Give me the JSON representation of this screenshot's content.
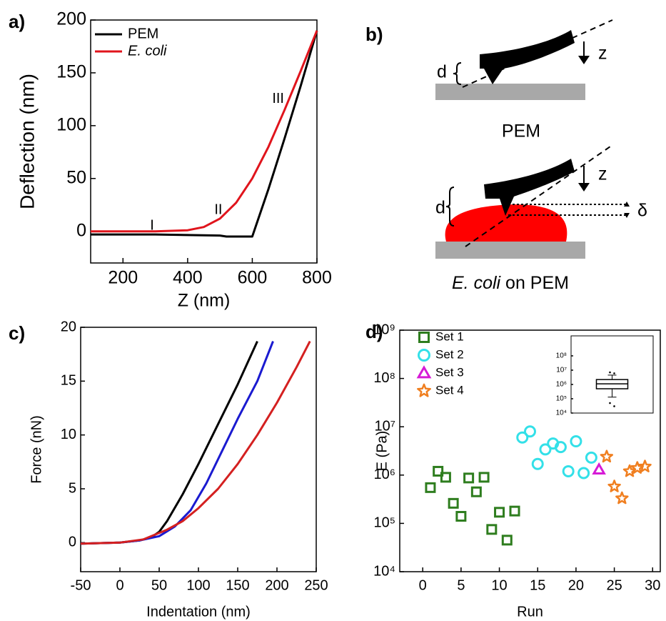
{
  "chart_data": [
    {
      "type": "line",
      "label": "a)",
      "xlabel": "Z (nm)",
      "ylabel": "Deflection (nm)",
      "xlim": [
        100,
        800
      ],
      "xticks": [
        200,
        400,
        600,
        800
      ],
      "ylim": [
        -30,
        200
      ],
      "yticks": [
        0,
        50,
        100,
        150,
        200
      ],
      "legend": "upper left",
      "series": [
        {
          "name": "PEM",
          "color": "#000000",
          "x": [
            100,
            300,
            500,
            520,
            560,
            600,
            650,
            700,
            750,
            800
          ],
          "values": [
            -3,
            -3,
            -4,
            -5,
            -5,
            -5,
            40,
            88,
            138,
            190
          ]
        },
        {
          "name": "E. coli",
          "color": "#e0141c",
          "x": [
            100,
            300,
            400,
            450,
            500,
            550,
            600,
            650,
            700,
            750,
            800
          ],
          "values": [
            0,
            0,
            1,
            4,
            12,
            27,
            50,
            80,
            115,
            152,
            190
          ]
        }
      ],
      "annotations": [
        {
          "text": "I",
          "x": 290,
          "y": 5
        },
        {
          "text": "II",
          "x": 495,
          "y": 20
        },
        {
          "text": "III",
          "x": 680,
          "y": 125
        }
      ]
    },
    {
      "type": "line",
      "label": "c)",
      "xlabel": "Indentation (nm)",
      "ylabel": "Force (nN)",
      "xlim": [
        -50,
        250
      ],
      "xticks": [
        -50,
        0,
        50,
        100,
        150,
        200,
        250
      ],
      "ylim": [
        -2.7,
        20
      ],
      "yticks": [
        0,
        5,
        10,
        15,
        20
      ],
      "series": [
        {
          "color": "#000000",
          "x": [
            -50,
            0,
            25,
            40,
            50,
            60,
            80,
            100,
            125,
            150,
            175
          ],
          "values": [
            -0.1,
            0,
            0.2,
            0.5,
            1,
            2,
            4.5,
            7.3,
            11,
            14.7,
            18.7
          ]
        },
        {
          "color": "#1a1ad0",
          "x": [
            -50,
            0,
            25,
            50,
            70,
            90,
            110,
            130,
            150,
            175,
            195
          ],
          "values": [
            -0.1,
            0,
            0.2,
            0.6,
            1.5,
            3,
            5.5,
            8.5,
            11.5,
            15,
            18.7
          ]
        },
        {
          "color": "#d42020",
          "x": [
            -50,
            0,
            30,
            60,
            80,
            100,
            125,
            150,
            175,
            200,
            225,
            242
          ],
          "values": [
            -0.1,
            0,
            0.3,
            1.2,
            2,
            3.2,
            5,
            7.3,
            10,
            13,
            16.3,
            18.7
          ]
        }
      ]
    },
    {
      "type": "scatter",
      "label": "d)",
      "xlabel": "Run",
      "ylabel": "E (Pa)",
      "log_y": true,
      "xlim": [
        -3,
        31
      ],
      "xticks": [
        0,
        5,
        10,
        15,
        20,
        25,
        30
      ],
      "ylim": [
        10000,
        1000000000
      ],
      "yticks": [
        {
          "value": 10000,
          "label": "10⁴"
        },
        {
          "value": 100000,
          "label": "10⁵"
        },
        {
          "value": 1000000,
          "label": "10⁶"
        },
        {
          "value": 10000000,
          "label": "10⁷"
        },
        {
          "value": 100000000,
          "label": "10⁸"
        },
        {
          "value": 1000000000,
          "label": "10⁹"
        }
      ],
      "legend": "upper left",
      "series": [
        {
          "name": "Set 1",
          "color": "#2e7d1e",
          "marker": "square",
          "x": [
            1,
            2,
            3,
            4,
            5,
            6,
            7,
            8,
            9,
            10,
            11,
            12
          ],
          "values": [
            550000,
            1200000,
            900000,
            260000,
            140000,
            870000,
            450000,
            900000,
            75000,
            170000,
            45000,
            180000
          ]
        },
        {
          "name": "Set 2",
          "color": "#33e0e8",
          "marker": "circle",
          "x": [
            13,
            14,
            15,
            16,
            17,
            18,
            19,
            20,
            21,
            22
          ],
          "values": [
            6000000,
            8000000,
            1700000,
            3400000,
            4500000,
            3800000,
            1200000,
            5000000,
            1100000,
            2300000
          ]
        },
        {
          "name": "Set 3",
          "color": "#d61ad6",
          "marker": "triangle",
          "x": [
            23
          ],
          "values": [
            1300000
          ]
        },
        {
          "name": "Set 4",
          "color": "#f07f20",
          "marker": "star",
          "x": [
            24,
            25,
            26,
            27,
            28,
            29
          ],
          "values": [
            2400000,
            580000,
            330000,
            1200000,
            1400000,
            1500000
          ]
        }
      ]
    },
    {
      "type": "box",
      "log_y": true,
      "ylim": [
        10000,
        2500000000
      ],
      "yticks": [
        {
          "value": 10000,
          "label": "10⁴"
        },
        {
          "value": 100000,
          "label": "10⁵"
        },
        {
          "value": 1000000,
          "label": "10⁶"
        },
        {
          "value": 10000000,
          "label": "10⁷"
        },
        {
          "value": 100000000,
          "label": "10⁸"
        }
      ],
      "whisker_low": 130000,
      "q1": 500000,
      "median": 1100000,
      "q3": 2200000,
      "whisker_high": 4500000,
      "outliers": [
        50000,
        30000,
        7000000,
        6000000
      ]
    }
  ],
  "diagram": {
    "label": "b)",
    "top_d": "d",
    "top_z": "z",
    "top_caption": "PEM",
    "bottom_d": "d",
    "bottom_z": "z",
    "delta": "δ",
    "caption_italic": "E. coli",
    "caption_rest": "on PEM"
  }
}
